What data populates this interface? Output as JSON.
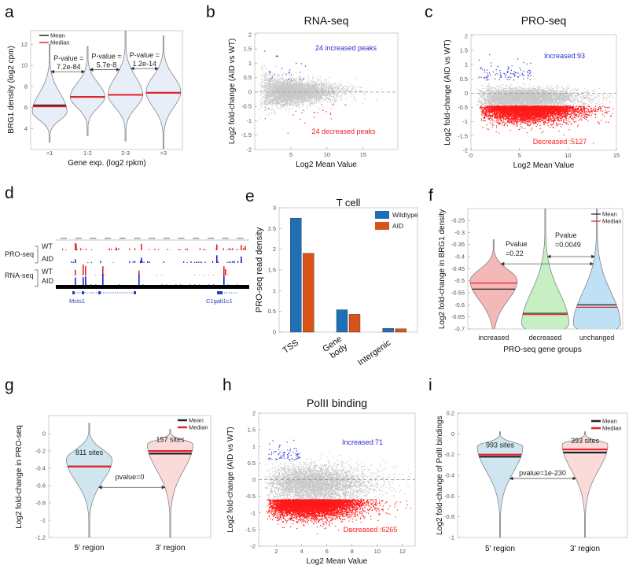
{
  "figure_labels": [
    "a",
    "b",
    "c",
    "d",
    "e",
    "f",
    "g",
    "h",
    "i"
  ],
  "chart_data": [
    {
      "panel": "a",
      "type": "violin",
      "categories": [
        "<1",
        "1-2",
        "2-3",
        ">3"
      ],
      "xlabel": "Gene exp. (log2 rpkm)",
      "ylabel": "BRG1 density (log2 cpm)",
      "ylim": [
        2,
        13.3
      ],
      "yticks": [
        4,
        6,
        8,
        10,
        12
      ],
      "legend": {
        "mean": "Mean",
        "median": "Median",
        "position": "top-left"
      },
      "groups": [
        {
          "range": [
            2.7,
            12.0
          ],
          "mode": 5.6,
          "mean": 6.2,
          "median": 6.1
        },
        {
          "range": [
            3.3,
            11.8
          ],
          "mode": 7.0,
          "mean": 7.0,
          "median": 7.0
        },
        {
          "range": [
            2.8,
            13.3
          ],
          "mode": 7.2,
          "mean": 7.2,
          "median": 7.2
        },
        {
          "range": [
            2.1,
            12.8
          ],
          "mode": 7.5,
          "mean": 7.4,
          "median": 7.4
        }
      ],
      "annotations": [
        {
          "line1": "P-value =",
          "line2": "7.2e-84"
        },
        {
          "line1": "P-value =",
          "line2": "5.7e-8"
        },
        {
          "line1": "P-value =",
          "line2": "1.2e-14"
        }
      ],
      "colors": {
        "fill": "#e8eef7",
        "mean": "#222222",
        "median": "#e8202a"
      }
    },
    {
      "panel": "b",
      "type": "scatter",
      "title": "RNA-seq",
      "xlabel": "Log2 Mean Value",
      "ylabel": "Log2 fold-change (AID vs WT)",
      "xlim": [
        0,
        19.8
      ],
      "ylim": [
        -2,
        2.05
      ],
      "xticks": [
        5,
        10,
        15
      ],
      "yticks": [
        -2,
        -1.5,
        -1,
        -0.5,
        0,
        0.5,
        1,
        1.5,
        2
      ],
      "increased": {
        "label": "24 increased peaks",
        "count": 24,
        "color": "#2b2bd0"
      },
      "decreased": {
        "label": "24 decreased peaks",
        "count": 24,
        "color": "#e8202a"
      },
      "background_color": "#c8c8c8"
    },
    {
      "panel": "c",
      "type": "scatter",
      "title": "PRO-seq",
      "xlabel": "Log2 Mean Value",
      "ylabel": "Log2 fold-change (AID vs WT)",
      "xlim": [
        0,
        15
      ],
      "ylim": [
        -2,
        2.05
      ],
      "xticks": [
        0,
        5,
        10,
        15
      ],
      "yticks": [
        -2,
        -1.5,
        -1,
        -0.5,
        0,
        0.5,
        1,
        1.5,
        2
      ],
      "increased": {
        "label": "Increased:93",
        "count": 93,
        "color": "#2b2bd0"
      },
      "decreased": {
        "label": "Decreased :5127",
        "count": 5127,
        "color": "#ff1a1a"
      },
      "background_color": "#c8c8c8"
    },
    {
      "panel": "e",
      "type": "bar",
      "title": "T cell",
      "ylabel": "PRO-seq read density",
      "categories": [
        "TSS",
        "Gene body",
        "Intergenic"
      ],
      "ylim": [
        0,
        3
      ],
      "yticks": [
        0,
        0.5,
        1,
        1.5,
        2,
        2.5,
        3
      ],
      "series": [
        {
          "name": "Wildtype",
          "values": [
            2.75,
            0.54,
            0.09
          ],
          "color": "#1f6fb5"
        },
        {
          "name": "AID",
          "values": [
            1.9,
            0.43,
            0.08
          ],
          "color": "#d95319"
        }
      ],
      "legend_position": "top-right"
    },
    {
      "panel": "f",
      "type": "violin",
      "categories": [
        "increased",
        "decreased",
        "unchanged"
      ],
      "xlabel": "PRO-seq gene groups",
      "ylabel": "Log2 fold-change in BRG1 density",
      "ylim": [
        -0.7,
        -0.201
      ],
      "yticks": [
        -0.25,
        -0.3,
        -0.35,
        -0.4,
        -0.45,
        -0.5,
        -0.55,
        -0.6,
        -0.65,
        -0.7
      ],
      "legend": {
        "mean": "Mean",
        "median": "Median",
        "position": "top-right"
      },
      "groups": [
        {
          "range": [
            -0.8,
            -0.33
          ],
          "mode": -0.5,
          "mean": -0.535,
          "median": -0.51,
          "fill": "#f5b8b8"
        },
        {
          "range": [
            -0.8,
            -0.2
          ],
          "mode": -0.68,
          "mean": -0.635,
          "median": -0.64,
          "fill": "#c6f0c4"
        },
        {
          "range": [
            -0.8,
            -0.2
          ],
          "mode": -0.68,
          "mean": -0.6,
          "median": -0.61,
          "fill": "#bfe0f5"
        }
      ],
      "annotations": [
        {
          "line1": "Pvalue",
          "line2": "=0.22"
        },
        {
          "line1": "Pvalue",
          "line2": "=0.0049"
        }
      ]
    },
    {
      "panel": "g",
      "type": "violin",
      "categories": [
        "5' region",
        "3' region"
      ],
      "ylabel": "Log2 fold-change in PRO-seq",
      "ylim": [
        -1.2,
        0.21
      ],
      "yticks": [
        -1.2,
        -1,
        -0.8,
        -0.6,
        -0.4,
        -0.2,
        0
      ],
      "legend": {
        "mean": "Mean",
        "median": "Median",
        "position": "top-right"
      },
      "groups": [
        {
          "range": [
            -1.2,
            0.12
          ],
          "mode": -0.3,
          "mean": -0.38,
          "median": -0.38,
          "fill": "#cfe6f0",
          "label": "811 sites"
        },
        {
          "range": [
            -1.2,
            0.05
          ],
          "mode": -0.12,
          "mean": -0.23,
          "median": -0.2,
          "fill": "#fbdada",
          "label": "157 sites"
        }
      ],
      "annotations": [
        {
          "line1": "pvalue=0"
        }
      ]
    },
    {
      "panel": "h",
      "type": "scatter",
      "title": "PolII binding",
      "xlabel": "Log2 Mean Value",
      "ylabel": "Log2 fold-change (AID vs WT)",
      "xlim": [
        0.6,
        13
      ],
      "ylim": [
        -2,
        2
      ],
      "xticks": [
        2,
        4,
        6,
        8,
        10,
        12
      ],
      "yticks": [
        -2,
        -1.5,
        -1,
        -0.5,
        0,
        0.5,
        1,
        1.5,
        2
      ],
      "increased": {
        "label": "Increased:71",
        "count": 71,
        "color": "#2b2bd0"
      },
      "decreased": {
        "label": "Decreased :6265",
        "count": 6265,
        "color": "#ff1a1a"
      },
      "background_color": "#c8c8c8"
    },
    {
      "panel": "i",
      "type": "violin",
      "categories": [
        "5' region",
        "3' region"
      ],
      "ylabel": "Log2 fold-change of PolII bindings",
      "ylim": [
        -1,
        0.2
      ],
      "yticks": [
        -1,
        -0.8,
        -0.6,
        -0.4,
        -0.2,
        0,
        0.2
      ],
      "legend": {
        "mean": "Mean",
        "median": "Median",
        "position": "top-right"
      },
      "groups": [
        {
          "range": [
            -1,
            0.02
          ],
          "mode": -0.12,
          "mean": -0.22,
          "median": -0.2,
          "fill": "#cfe6f0",
          "label": "993 sites"
        },
        {
          "range": [
            -1,
            0.02
          ],
          "mode": -0.1,
          "mean": -0.18,
          "median": -0.15,
          "fill": "#fbdada",
          "label": "393 sites"
        }
      ],
      "annotations": [
        {
          "line1": "pvalue=1e-230"
        }
      ]
    }
  ],
  "browser_tracks": {
    "groups": [
      "PRO-seq",
      "RNA-seq"
    ],
    "tracks": [
      "WT",
      "AID",
      "WT",
      "AID"
    ],
    "genes": [
      "Mcts1",
      "C1galt1c1"
    ],
    "colors": {
      "WT": "#e8202a",
      "AID": "#2020c0",
      "gene": "#2a3fc0"
    }
  }
}
